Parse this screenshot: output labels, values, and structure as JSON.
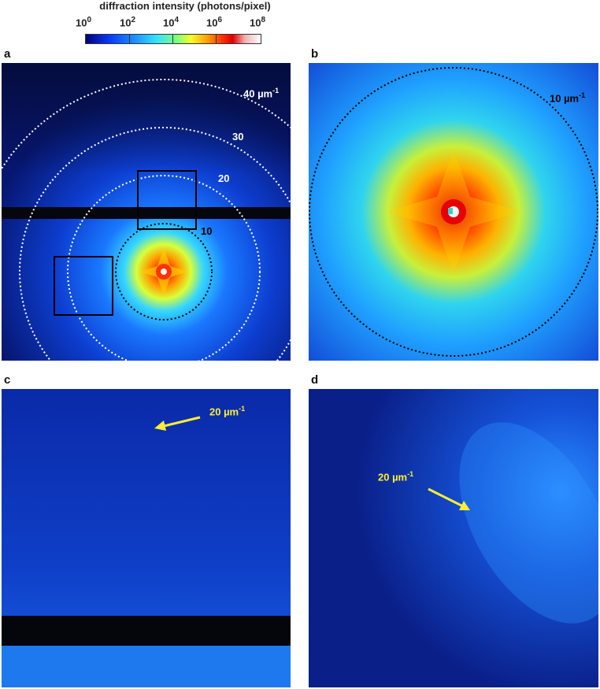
{
  "colorbar": {
    "title": "diffraction intensity (photons/pixel)",
    "ticks": [
      {
        "base": "10",
        "exp": "0"
      },
      {
        "base": "10",
        "exp": "2"
      },
      {
        "base": "10",
        "exp": "4"
      },
      {
        "base": "10",
        "exp": "6"
      },
      {
        "base": "10",
        "exp": "8"
      }
    ]
  },
  "panels": {
    "a": {
      "label": "a",
      "rings": [
        {
          "base": "40 µm",
          "exp": "-1"
        },
        {
          "base": "30",
          "exp": ""
        },
        {
          "base": "20",
          "exp": ""
        },
        {
          "base": "10",
          "exp": ""
        }
      ]
    },
    "b": {
      "label": "b",
      "ring": {
        "base": "10 µm",
        "exp": "-1"
      }
    },
    "c": {
      "label": "c",
      "arrow": {
        "base": "20 µm",
        "exp": "-1"
      }
    },
    "d": {
      "label": "d",
      "arrow": {
        "base": "20 µm",
        "exp": "-1"
      }
    }
  },
  "colors": {
    "arrow": "#ffee33",
    "ring_white": "#ffffff",
    "ring_black": "#000000",
    "background": "#0a1a6e"
  }
}
